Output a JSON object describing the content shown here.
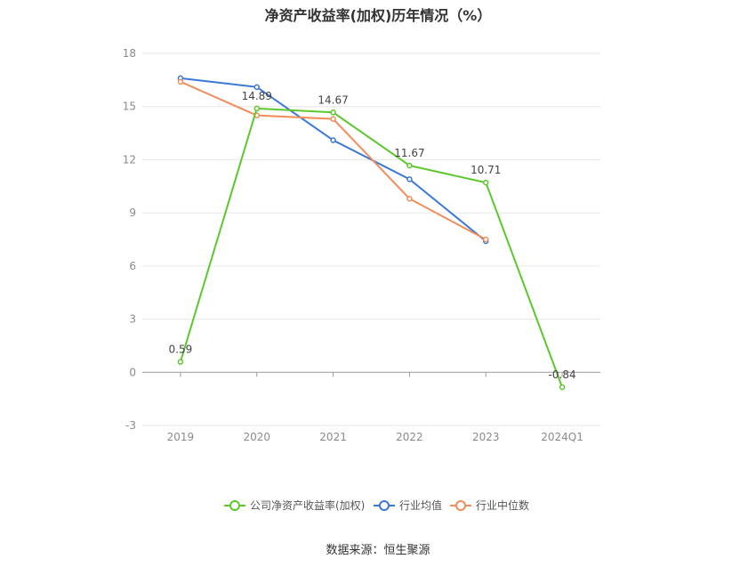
{
  "chart_data": {
    "type": "line",
    "title": "净资产收益率(加权)历年情况（%）",
    "categories": [
      "2019",
      "2020",
      "2021",
      "2022",
      "2023",
      "2024Q1"
    ],
    "ylim": [
      -3,
      18
    ],
    "yticks": [
      -3,
      0,
      3,
      6,
      9,
      12,
      15,
      18
    ],
    "grid": true,
    "legend_position": "bottom",
    "series": [
      {
        "name": "公司净资产收益率(加权)",
        "color": "#5cc72f",
        "values": [
          0.59,
          14.89,
          14.67,
          11.67,
          10.71,
          -0.84
        ],
        "labels": [
          "0.59",
          "14.89",
          "14.67",
          "11.67",
          "10.71",
          "-0.84"
        ]
      },
      {
        "name": "行业均值",
        "color": "#3a78d8",
        "values": [
          16.6,
          16.1,
          13.1,
          10.9,
          7.4,
          null
        ]
      },
      {
        "name": "行业中位数",
        "color": "#f28c5a",
        "values": [
          16.4,
          14.5,
          14.3,
          9.8,
          7.5,
          null
        ]
      }
    ],
    "source": "数据来源：恒生聚源"
  }
}
